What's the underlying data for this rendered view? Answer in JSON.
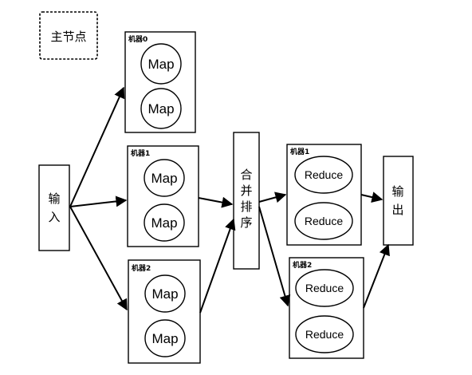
{
  "master_node": "主节点",
  "input": [
    "输",
    "入"
  ],
  "merge_sort": [
    "合",
    "并",
    "排",
    "序"
  ],
  "output": [
    "输",
    "出"
  ],
  "map_machines": [
    {
      "label": "机器0",
      "nodes": [
        "Map",
        "Map"
      ]
    },
    {
      "label": "机器1",
      "nodes": [
        "Map",
        "Map"
      ]
    },
    {
      "label": "机器2",
      "nodes": [
        "Map",
        "Map"
      ]
    }
  ],
  "reduce_machines": [
    {
      "label": "机器1",
      "nodes": [
        "Reduce",
        "Reduce"
      ]
    },
    {
      "label": "机器2",
      "nodes": [
        "Reduce",
        "Reduce"
      ]
    }
  ]
}
